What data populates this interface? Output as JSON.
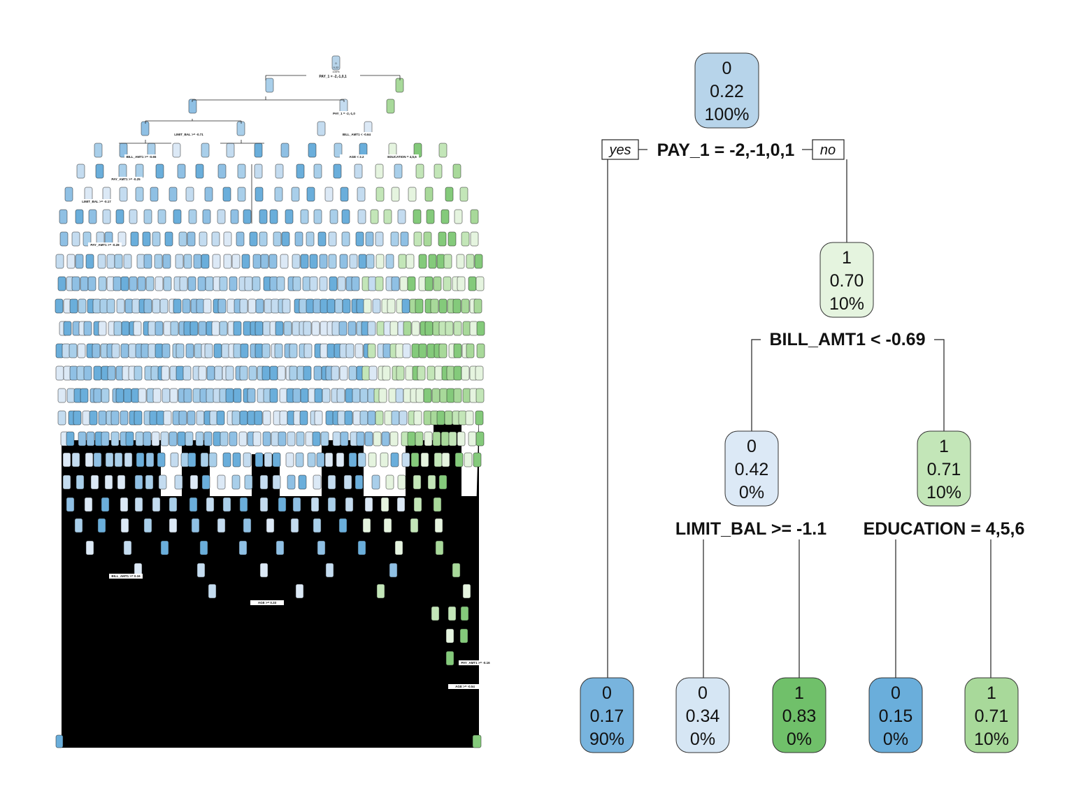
{
  "large_tree": {
    "root": {
      "class": "0",
      "prob": "0.22",
      "pct": "100%"
    },
    "root_split": "PAY_1 = -2,-1,0,1",
    "visible_split_labels": [
      "PAY_1 = -2,-1,0",
      "LIMIT_BAL >= -0.71",
      "BILL_AMT1 < -0.64",
      "BILL_AMT1 >= -0.65",
      "AGE < 2.2",
      "EDUCATION = 4,5,6",
      "PAY_AMT1 >= -0.25",
      "LIMIT_BAL >= -0.17",
      "PAY_AMT1 >= -0.28",
      "AGE >= 0.33",
      "BILL_AMT1 >= 0.16",
      "PAY_AMT1 >= -0.16",
      "AGE >= -0.54"
    ]
  },
  "small_tree": {
    "yes_label": "yes",
    "no_label": "no",
    "colors": {
      "blue_dark": "#6aaedb",
      "blue_mid": "#9ecae7",
      "blue_light": "#dce9f6",
      "green_light": "#e5f4df",
      "green_mid": "#b9e2ad",
      "green_dark": "#6fc26b",
      "green_pale": "#a8d99a"
    },
    "nodes": [
      {
        "id": "root",
        "class": "0",
        "prob": "0.22",
        "pct": "100%",
        "color": "#b7d4ea"
      },
      {
        "id": "right1",
        "class": "1",
        "prob": "0.70",
        "pct": "10%",
        "color": "#e5f4df"
      },
      {
        "id": "mid_left",
        "class": "0",
        "prob": "0.42",
        "pct": "0%",
        "color": "#dce9f6"
      },
      {
        "id": "mid_right",
        "class": "1",
        "prob": "0.71",
        "pct": "10%",
        "color": "#c3e6b8"
      },
      {
        "id": "leaf1",
        "class": "0",
        "prob": "0.17",
        "pct": "90%",
        "color": "#78b4de"
      },
      {
        "id": "leaf2",
        "class": "0",
        "prob": "0.34",
        "pct": "0%",
        "color": "#d6e6f4"
      },
      {
        "id": "leaf3",
        "class": "1",
        "prob": "0.83",
        "pct": "0%",
        "color": "#70c06a"
      },
      {
        "id": "leaf4",
        "class": "0",
        "prob": "0.15",
        "pct": "0%",
        "color": "#6aaedb"
      },
      {
        "id": "leaf5",
        "class": "1",
        "prob": "0.71",
        "pct": "10%",
        "color": "#a8d99a"
      }
    ],
    "splits": [
      {
        "id": "s_root",
        "label": "PAY_1 = -2,-1,0,1"
      },
      {
        "id": "s_right1",
        "label": "BILL_AMT1 < -0.69"
      },
      {
        "id": "s_mid_left",
        "label": "LIMIT_BAL >= -1.1"
      },
      {
        "id": "s_mid_right",
        "label": "EDUCATION = 4,5,6"
      }
    ]
  }
}
